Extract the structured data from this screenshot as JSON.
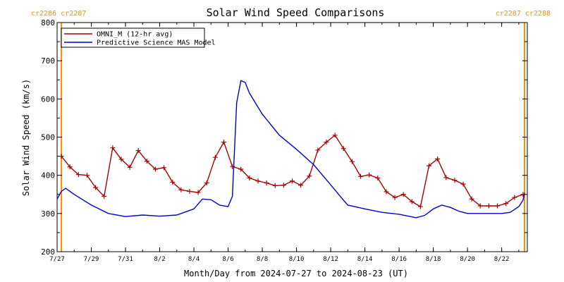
{
  "chart_data": {
    "type": "line",
    "title": "Solar Wind Speed Comparisons",
    "xlabel": "Month/Day from 2024-07-27 to 2024-08-23 (UT)",
    "ylabel": "Solar Wind Speed (km/s)",
    "ylim": [
      200,
      800
    ],
    "xlim": [
      "2024-07-27",
      "2024-08-23 12:00"
    ],
    "yticks": [
      200,
      300,
      400,
      500,
      600,
      700,
      800
    ],
    "xticks": [
      {
        "date": "2024-07-27",
        "label": "7/27"
      },
      {
        "date": "2024-07-29",
        "label": "7/29"
      },
      {
        "date": "2024-07-31",
        "label": "7/31"
      },
      {
        "date": "2024-08-02",
        "label": "8/2"
      },
      {
        "date": "2024-08-04",
        "label": "8/4"
      },
      {
        "date": "2024-08-06",
        "label": "8/6"
      },
      {
        "date": "2024-08-08",
        "label": "8/8"
      },
      {
        "date": "2024-08-10",
        "label": "8/10"
      },
      {
        "date": "2024-08-12",
        "label": "8/12"
      },
      {
        "date": "2024-08-14",
        "label": "8/14"
      },
      {
        "date": "2024-08-16",
        "label": "8/16"
      },
      {
        "date": "2024-08-18",
        "label": "8/18"
      },
      {
        "date": "2024-08-20",
        "label": "8/20"
      },
      {
        "date": "2024-08-22",
        "label": "8/22"
      }
    ],
    "legend": "top-left",
    "grid": false,
    "rotation_markers": [
      {
        "date": "2024-07-27 06:00",
        "label": "cr2286 cr2287",
        "side": "left",
        "color": "#ff8c00"
      },
      {
        "date": "2024-08-23 08:00",
        "label": "cr2287 cr2288",
        "side": "right",
        "color": "#ff8c00"
      }
    ],
    "series": [
      {
        "name": "OMNI_M (12-hr avg)",
        "color": "#aa0000",
        "marker": "plus",
        "x": [
          "2024-07-27 06:00",
          "2024-07-27 18:00",
          "2024-07-28 06:00",
          "2024-07-28 18:00",
          "2024-07-29 06:00",
          "2024-07-29 18:00",
          "2024-07-30 06:00",
          "2024-07-30 18:00",
          "2024-07-31 06:00",
          "2024-07-31 18:00",
          "2024-08-01 06:00",
          "2024-08-01 18:00",
          "2024-08-02 06:00",
          "2024-08-02 18:00",
          "2024-08-03 06:00",
          "2024-08-03 18:00",
          "2024-08-04 06:00",
          "2024-08-04 18:00",
          "2024-08-05 06:00",
          "2024-08-05 18:00",
          "2024-08-06 06:00",
          "2024-08-06 18:00",
          "2024-08-07 06:00",
          "2024-08-07 18:00",
          "2024-08-08 06:00",
          "2024-08-08 18:00",
          "2024-08-09 06:00",
          "2024-08-09 18:00",
          "2024-08-10 06:00",
          "2024-08-10 18:00",
          "2024-08-11 06:00",
          "2024-08-11 18:00",
          "2024-08-12 06:00",
          "2024-08-12 18:00",
          "2024-08-13 06:00",
          "2024-08-13 18:00",
          "2024-08-14 06:00",
          "2024-08-14 18:00",
          "2024-08-15 06:00",
          "2024-08-15 18:00",
          "2024-08-16 06:00",
          "2024-08-16 18:00",
          "2024-08-17 06:00",
          "2024-08-17 18:00",
          "2024-08-18 06:00",
          "2024-08-18 18:00",
          "2024-08-19 06:00",
          "2024-08-19 18:00",
          "2024-08-20 06:00",
          "2024-08-20 18:00",
          "2024-08-21 06:00",
          "2024-08-21 18:00",
          "2024-08-22 06:00",
          "2024-08-22 18:00",
          "2024-08-23 06:00"
        ],
        "values": [
          450,
          422,
          402,
          400,
          368,
          345,
          472,
          442,
          421,
          465,
          437,
          416,
          420,
          382,
          362,
          358,
          355,
          380,
          447,
          487,
          423,
          416,
          393,
          385,
          380,
          373,
          374,
          385,
          374,
          398,
          466,
          487,
          505,
          470,
          436,
          397,
          401,
          393,
          357,
          342,
          350,
          331,
          318,
          425,
          443,
          394,
          387,
          377,
          338,
          320,
          320,
          320,
          326,
          342,
          350
        ]
      },
      {
        "name": "Predictive Science MAS Model",
        "color": "#0000cc",
        "marker": "none",
        "x": [
          "2024-07-27 00:00",
          "2024-07-27 06:00",
          "2024-07-27 12:00",
          "2024-07-28 00:00",
          "2024-07-29 00:00",
          "2024-07-30 00:00",
          "2024-07-31 00:00",
          "2024-08-01 00:00",
          "2024-08-02 00:00",
          "2024-08-03 00:00",
          "2024-08-04 00:00",
          "2024-08-04 12:00",
          "2024-08-05 00:00",
          "2024-08-05 12:00",
          "2024-08-06 00:00",
          "2024-08-06 06:00",
          "2024-08-06 12:00",
          "2024-08-06 18:00",
          "2024-08-07 00:00",
          "2024-08-07 06:00",
          "2024-08-08 00:00",
          "2024-08-09 00:00",
          "2024-08-10 00:00",
          "2024-08-11 00:00",
          "2024-08-12 00:00",
          "2024-08-12 12:00",
          "2024-08-13 00:00",
          "2024-08-14 00:00",
          "2024-08-15 00:00",
          "2024-08-16 00:00",
          "2024-08-17 00:00",
          "2024-08-17 12:00",
          "2024-08-18 00:00",
          "2024-08-18 12:00",
          "2024-08-19 00:00",
          "2024-08-19 12:00",
          "2024-08-20 00:00",
          "2024-08-21 00:00",
          "2024-08-22 00:00",
          "2024-08-22 12:00",
          "2024-08-23 00:00",
          "2024-08-23 06:00",
          "2024-08-23 08:00"
        ],
        "values": [
          338,
          358,
          366,
          350,
          322,
          300,
          292,
          296,
          293,
          296,
          312,
          338,
          336,
          322,
          318,
          345,
          590,
          648,
          643,
          615,
          560,
          505,
          468,
          428,
          375,
          348,
          322,
          312,
          303,
          298,
          289,
          295,
          312,
          322,
          316,
          306,
          300,
          300,
          300,
          303,
          318,
          335,
          354
        ]
      }
    ]
  }
}
